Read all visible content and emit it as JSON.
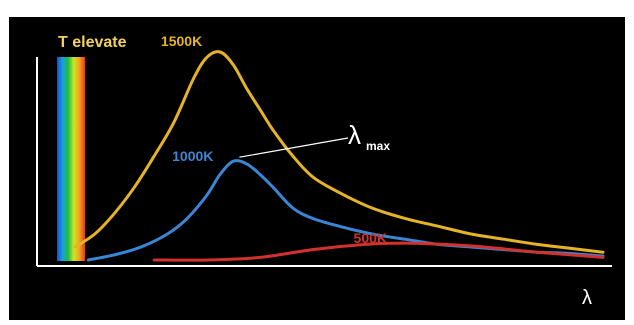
{
  "chart_data": {
    "type": "line",
    "title": "T elevate",
    "xlabel": "λ",
    "ylabel": "",
    "grid": false,
    "legend": "none",
    "annotation": {
      "symbol": "λ",
      "subscript": "max"
    },
    "series": [
      {
        "name": "1500K",
        "color": "#e6b325",
        "points": [
          [
            0,
            5
          ],
          [
            3,
            10
          ],
          [
            6,
            18
          ],
          [
            9,
            28
          ],
          [
            12,
            40
          ],
          [
            15,
            53
          ],
          [
            18,
            70
          ],
          [
            20,
            78
          ],
          [
            22,
            80
          ],
          [
            24,
            75
          ],
          [
            26,
            66
          ],
          [
            28,
            58
          ],
          [
            30,
            50
          ],
          [
            33,
            40
          ],
          [
            36,
            32
          ],
          [
            40,
            26
          ],
          [
            45,
            20
          ],
          [
            50,
            16
          ],
          [
            55,
            13
          ],
          [
            60,
            10
          ],
          [
            65,
            8
          ],
          [
            70,
            6
          ],
          [
            75,
            4.5
          ],
          [
            80,
            3
          ]
        ]
      },
      {
        "name": "1000K",
        "color": "#3a86d6",
        "points": [
          [
            2,
            0
          ],
          [
            6,
            2
          ],
          [
            10,
            5
          ],
          [
            14,
            10
          ],
          [
            17,
            16
          ],
          [
            20,
            25
          ],
          [
            22,
            33
          ],
          [
            24,
            38
          ],
          [
            26,
            37
          ],
          [
            28,
            33
          ],
          [
            30,
            28
          ],
          [
            33,
            20
          ],
          [
            36,
            16
          ],
          [
            40,
            13
          ],
          [
            45,
            10
          ],
          [
            50,
            8
          ],
          [
            55,
            6
          ],
          [
            60,
            5
          ],
          [
            65,
            4
          ],
          [
            70,
            3
          ],
          [
            75,
            2.5
          ],
          [
            80,
            1.5
          ]
        ]
      },
      {
        "name": "500K",
        "color": "#d2322d",
        "points": [
          [
            12,
            0
          ],
          [
            20,
            0
          ],
          [
            28,
            1
          ],
          [
            36,
            4
          ],
          [
            44,
            6
          ],
          [
            50,
            6.5
          ],
          [
            56,
            6
          ],
          [
            62,
            5
          ],
          [
            70,
            3
          ],
          [
            80,
            1
          ]
        ]
      }
    ],
    "max_points": [
      [
        22,
        80
      ],
      [
        24,
        38
      ],
      [
        50,
        6.5
      ]
    ]
  }
}
